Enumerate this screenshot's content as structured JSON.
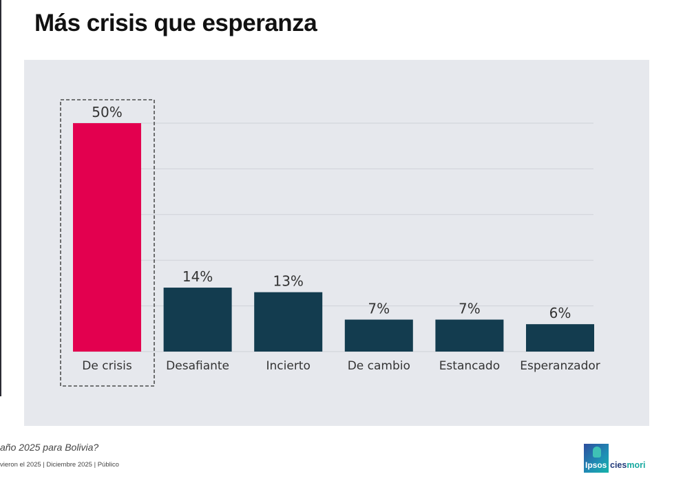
{
  "title": "Más crisis que esperanza",
  "footer": {
    "question": "año 2025 para Bolivia?",
    "source": "vieron el 2025 | Diciembre 2025 | Público"
  },
  "logo": {
    "ipsos": "Ipsos",
    "cies": "cies",
    "mori": "mori"
  },
  "colors": {
    "highlight": "#e3004f",
    "bar": "#133c4f",
    "panel": "#e6e8ed",
    "grid": "#cfd2d8",
    "text": "#333333"
  },
  "chart_data": {
    "type": "bar",
    "title": "Más crisis que esperanza",
    "xlabel": "",
    "ylabel": "",
    "categories": [
      "De crisis",
      "Desafiante",
      "Incierto",
      "De cambio",
      "Estancado",
      "Esperanzador"
    ],
    "values": [
      50,
      14,
      13,
      7,
      7,
      6
    ],
    "data_labels": [
      "50%",
      "14%",
      "13%",
      "7%",
      "7%",
      "6%"
    ],
    "unit": "%",
    "ylim": [
      0,
      50
    ],
    "grid_values": [
      0,
      10,
      20,
      30,
      40,
      50
    ],
    "grid": true,
    "highlighted_category": "De crisis",
    "legend": "none"
  }
}
